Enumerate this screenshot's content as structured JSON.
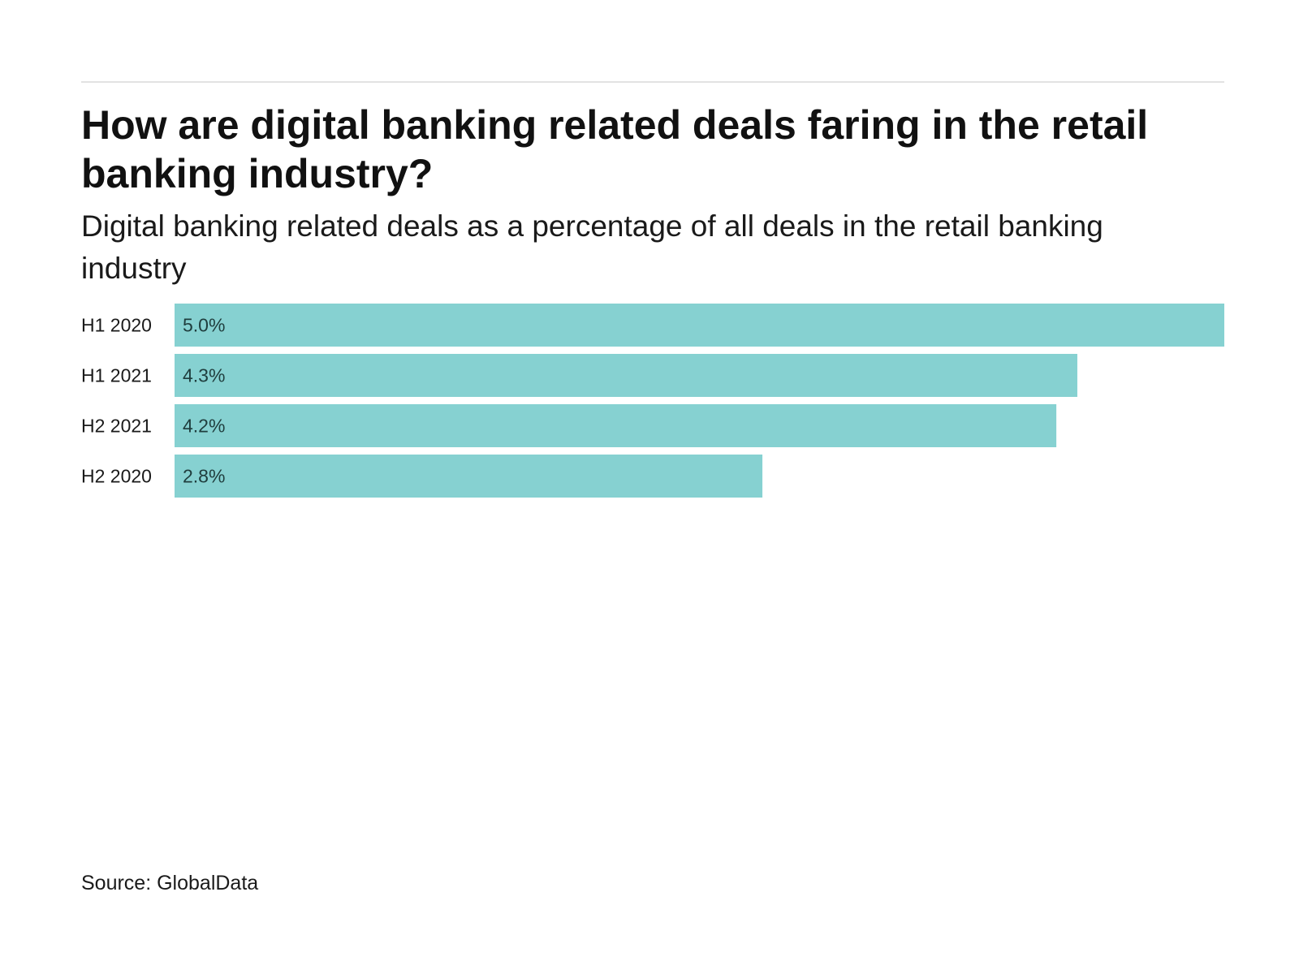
{
  "chart_data": {
    "type": "bar",
    "orientation": "horizontal",
    "title": "How are digital banking related deals faring in the retail banking industry?",
    "subtitle": "Digital banking related deals as a percentage of all deals in the retail banking industry",
    "categories": [
      "H1 2020",
      "H1 2021",
      "H2 2021",
      "H2 2020"
    ],
    "values": [
      5.0,
      4.3,
      4.2,
      2.8
    ],
    "value_labels": [
      "5.0%",
      "4.3%",
      "4.2%",
      "2.8%"
    ],
    "xlim": [
      0,
      5.0
    ],
    "grid": false,
    "legend": "none",
    "bar_color": "#86d1d1"
  },
  "source": "Source: GlobalData"
}
